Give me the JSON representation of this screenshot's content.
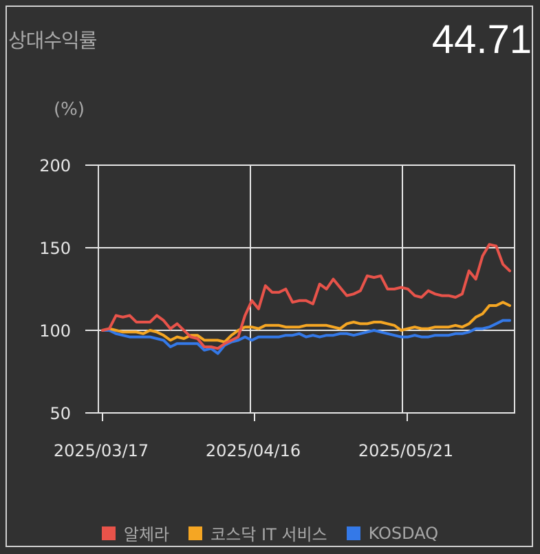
{
  "header": {
    "title": "상대수익률",
    "value": "44.71"
  },
  "chart_data": {
    "type": "line",
    "unit_label": "(%)",
    "y_ticks": [
      "200",
      "150",
      "100",
      "50"
    ],
    "x_ticks": [
      "2025/03/17",
      "2025/04/16",
      "2025/05/21"
    ],
    "ylim": [
      50,
      200
    ],
    "grid": true,
    "legend_position": "bottom",
    "series": [
      {
        "name": "알체라",
        "color": "#e8534a",
        "values": [
          100,
          101,
          109,
          108,
          109,
          105,
          105,
          105,
          109,
          106,
          101,
          104,
          100,
          96,
          95,
          90,
          90,
          89,
          92,
          94,
          96,
          109,
          118,
          113,
          127,
          123,
          123,
          125,
          117,
          118,
          118,
          116,
          128,
          125,
          131,
          126,
          121,
          122,
          124,
          133,
          132,
          133,
          125,
          125,
          126,
          125,
          121,
          120,
          124,
          122,
          121,
          121,
          120,
          122,
          136,
          131,
          145,
          152,
          151,
          140,
          136
        ]
      },
      {
        "name": "코스닥 IT 서비스",
        "color": "#f5a623",
        "values": [
          100,
          101,
          100,
          99,
          99,
          99,
          98,
          100,
          99,
          97,
          94,
          96,
          95,
          97,
          97,
          94,
          94,
          94,
          93,
          97,
          100,
          102,
          102,
          101,
          103,
          103,
          103,
          102,
          102,
          102,
          103,
          103,
          103,
          103,
          102,
          101,
          104,
          105,
          104,
          104,
          105,
          105,
          104,
          103,
          100,
          101,
          102,
          101,
          101,
          102,
          102,
          102,
          103,
          102,
          104,
          108,
          110,
          115,
          115,
          117,
          115
        ]
      },
      {
        "name": "KOSDAQ",
        "color": "#3479e8",
        "values": [
          100,
          100,
          98,
          97,
          96,
          96,
          96,
          96,
          95,
          94,
          90,
          92,
          92,
          92,
          92,
          88,
          89,
          86,
          91,
          93,
          94,
          96,
          94,
          96,
          96,
          96,
          96,
          97,
          97,
          98,
          96,
          97,
          96,
          97,
          97,
          98,
          98,
          97,
          98,
          99,
          100,
          99,
          98,
          97,
          96,
          96,
          97,
          96,
          96,
          97,
          97,
          97,
          98,
          98,
          99,
          101,
          101,
          102,
          104,
          106,
          106
        ]
      }
    ]
  }
}
